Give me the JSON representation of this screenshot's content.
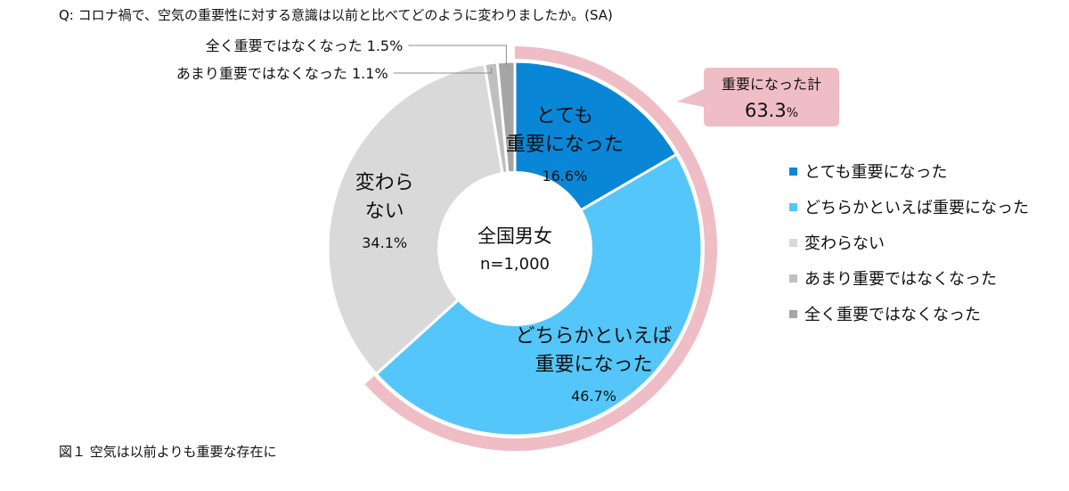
{
  "question": "Q:  コロナ禍で、空気の重要性に対する意識は以前と比べてどのように変わりましたか。(SA)",
  "caption": "図１  空気は以前よりも重要な存在に",
  "center": {
    "line1": "全国男女",
    "line2": "n=1,000"
  },
  "callout": {
    "label": "重要になった計",
    "value": "63.3",
    "unit": "%"
  },
  "colors": {
    "とても重要になった": "#0a86d6",
    "どちらかといえば重要になった": "#55c6f9",
    "変わらない": "#d9d9d9",
    "あまり重要ではなくなった": "#bfbfbf",
    "全く重要ではなくなった": "#a5a5a5",
    "outer_ring": "#efbdc5",
    "callout_bg": "#efbdc5"
  },
  "chart_data": {
    "type": "pie",
    "style": "donut",
    "start": "top, clockwise",
    "slices": [
      {
        "name": "とても重要になった",
        "value": 16.6,
        "label_lines": [
          "とても",
          "重要になった"
        ],
        "value_label": "16.6%"
      },
      {
        "name": "どちらかといえば重要になった",
        "value": 46.7,
        "label_lines": [
          "どちらかといえば",
          "重要になった"
        ],
        "value_label": "46.7%"
      },
      {
        "name": "変わらない",
        "value": 34.1,
        "label_lines": [
          "変わら",
          "ない"
        ],
        "value_label": "34.1%"
      },
      {
        "name": "あまり重要ではなくなった",
        "value": 1.1,
        "leader_label": "あまり重要ではなくなった 1.1%"
      },
      {
        "name": "全く重要ではなくなった",
        "value": 1.5,
        "leader_label": "全く重要ではなくなった 1.5%"
      }
    ],
    "highlight_group": {
      "members": [
        "とても重要になった",
        "どちらかといえば重要になった"
      ],
      "total": 63.3
    },
    "legend": {
      "placement": "right",
      "entries": [
        "とても重要になった",
        "どちらかといえば重要になった",
        "変わらない",
        "あまり重要ではなくなった",
        "全く重要ではなくなった"
      ]
    }
  }
}
